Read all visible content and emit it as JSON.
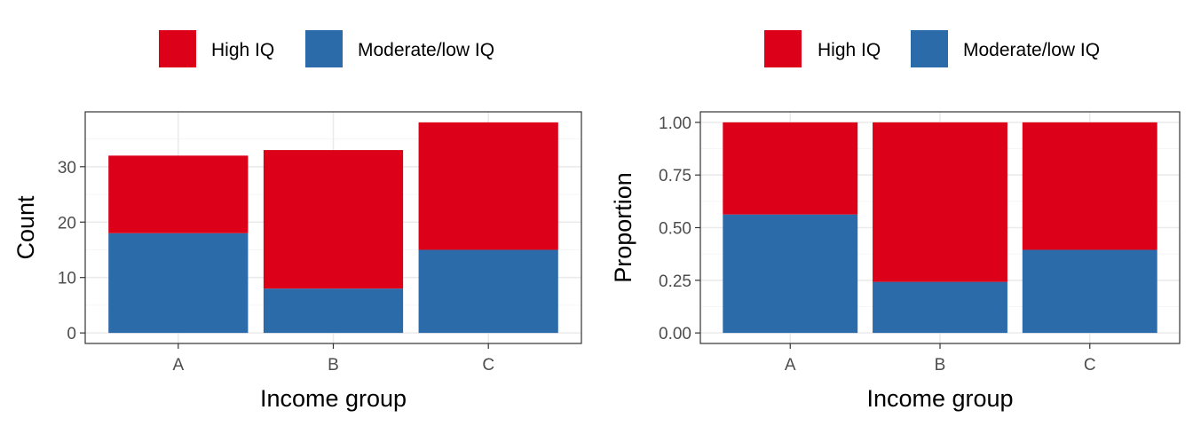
{
  "colors": {
    "high": "#DC0018",
    "moderate": "#2C6BAA",
    "grid": "#EBEBEB",
    "border": "#333333"
  },
  "chart_data": [
    {
      "type": "bar",
      "stacked": true,
      "categories": [
        "A",
        "B",
        "C"
      ],
      "series": [
        {
          "name": "Moderate/low IQ",
          "values": [
            18,
            8,
            15
          ]
        },
        {
          "name": "High IQ",
          "values": [
            14,
            25,
            23
          ]
        }
      ],
      "stack_order_bottom_to_top": [
        "Moderate/low IQ",
        "High IQ"
      ],
      "legend_order": [
        "High IQ",
        "Moderate/low IQ"
      ],
      "legend_position": "top",
      "xlabel": "Income group",
      "ylabel": "Count",
      "ylim": [
        -1.9,
        39.9
      ],
      "yticks": [
        0,
        10,
        20,
        30
      ],
      "yticklabels": [
        "0",
        "10",
        "20",
        "30"
      ],
      "grid": true
    },
    {
      "type": "bar",
      "stacked": true,
      "categories": [
        "A",
        "B",
        "C"
      ],
      "series": [
        {
          "name": "Moderate/low IQ",
          "values": [
            0.5625,
            0.2424,
            0.3947
          ]
        },
        {
          "name": "High IQ",
          "values": [
            0.4375,
            0.7576,
            0.6053
          ]
        }
      ],
      "stack_order_bottom_to_top": [
        "Moderate/low IQ",
        "High IQ"
      ],
      "legend_order": [
        "High IQ",
        "Moderate/low IQ"
      ],
      "legend_position": "top",
      "xlabel": "Income group",
      "ylabel": "Proportion",
      "ylim": [
        -0.05,
        1.05
      ],
      "yticks": [
        0,
        0.25,
        0.5,
        0.75,
        1
      ],
      "yticklabels": [
        "0.00",
        "0.25",
        "0.50",
        "0.75",
        "1.00"
      ],
      "grid": true
    }
  ]
}
